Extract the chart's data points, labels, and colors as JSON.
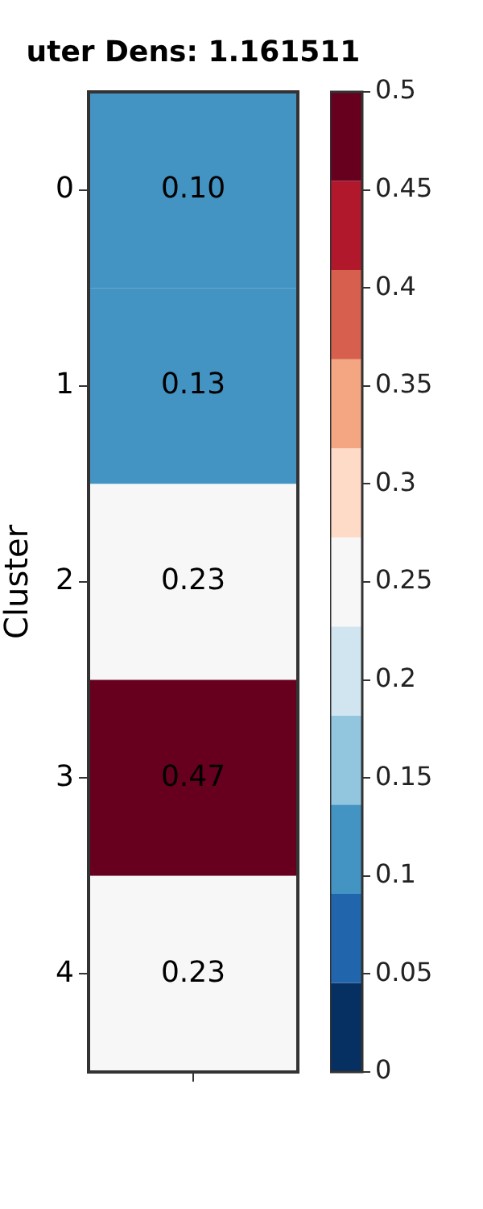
{
  "chart_data": {
    "type": "heatmap",
    "title": "uter Dens: 1.161511",
    "ylabel": "Cluster",
    "categories": [
      null
    ],
    "y_categories": [
      "0",
      "1",
      "2",
      "3",
      "4"
    ],
    "cells": [
      [
        0.1
      ],
      [
        0.13
      ],
      [
        0.23
      ],
      [
        0.47
      ],
      [
        0.23
      ]
    ],
    "cell_labels": [
      [
        "0.10"
      ],
      [
        "0.13"
      ],
      [
        "0.23"
      ],
      [
        "0.47"
      ],
      [
        "0.23"
      ]
    ],
    "data_labels": true,
    "clim": [
      0,
      0.5
    ],
    "cticks": [
      0,
      0.05,
      0.1,
      0.15,
      0.2,
      0.25,
      0.3,
      0.35,
      0.4,
      0.45,
      0.5
    ],
    "colors": [
      "#053061",
      "#2166ac",
      "#4393c3",
      "#92c5de",
      "#d1e5f0",
      "#f7f7f7",
      "#fddbc7",
      "#f4a582",
      "#d6604d",
      "#b2182b",
      "#67001f"
    ]
  }
}
